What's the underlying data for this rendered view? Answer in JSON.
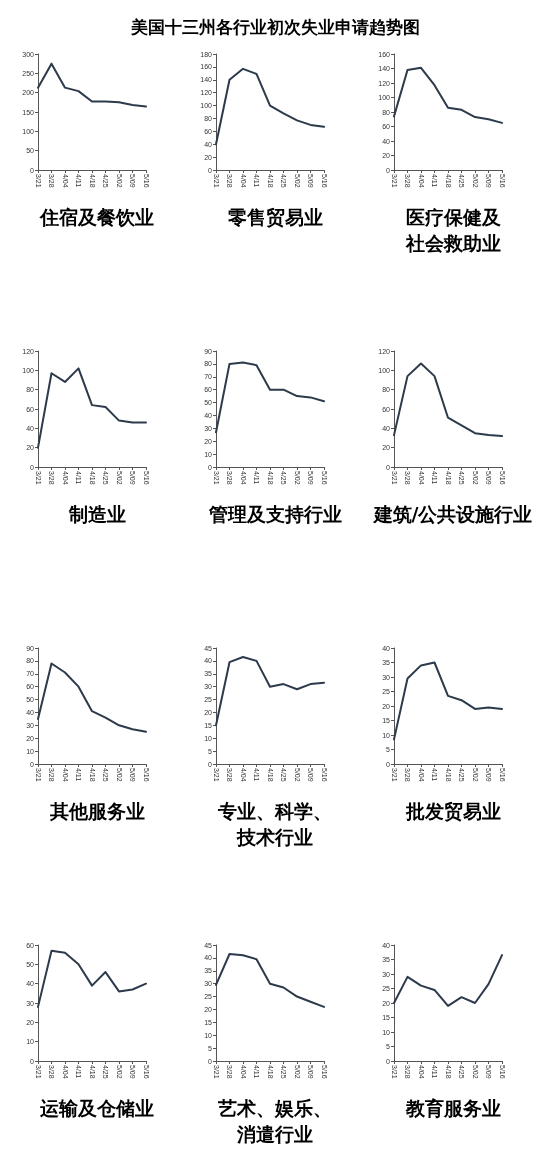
{
  "chart_data": [
    {
      "type": "other",
      "title": "美国十三州各行业初次失业申请趋势图"
    },
    {
      "type": "line",
      "title": "住宿及餐饮业",
      "categories": [
        "3/21",
        "3/28",
        "4/04",
        "4/11",
        "4/18",
        "4/25",
        "5/02",
        "5/09",
        "5/16"
      ],
      "values": [
        213,
        275,
        213,
        204,
        177,
        177,
        175,
        168,
        164
      ],
      "color": "#2c3a4b",
      "ylim": [
        0,
        300
      ],
      "yticks": [
        0,
        50,
        100,
        150,
        200,
        250,
        300
      ]
    },
    {
      "type": "line",
      "title": "零售贸易业",
      "categories": [
        "3/21",
        "3/28",
        "4/04",
        "4/11",
        "4/18",
        "4/25",
        "5/02",
        "5/09",
        "5/16"
      ],
      "values": [
        40,
        140,
        157,
        149,
        100,
        88,
        77,
        70,
        67
      ],
      "color": "#2c3a4b",
      "ylim": [
        0,
        180
      ],
      "yticks": [
        0,
        20,
        40,
        60,
        80,
        100,
        120,
        140,
        160,
        180
      ]
    },
    {
      "type": "line",
      "title": "医疗保健及社会救助业",
      "categories": [
        "3/21",
        "3/28",
        "4/04",
        "4/11",
        "4/18",
        "4/25",
        "5/02",
        "5/09",
        "5/16"
      ],
      "values": [
        74,
        138,
        141,
        117,
        86,
        83,
        73,
        70,
        65
      ],
      "color": "#2c3a4b",
      "ylim": [
        0,
        160
      ],
      "yticks": [
        0,
        20,
        40,
        60,
        80,
        100,
        120,
        140,
        160
      ]
    },
    {
      "type": "line",
      "title": "制造业",
      "categories": [
        "3/21",
        "3/28",
        "4/04",
        "4/11",
        "4/18",
        "4/25",
        "5/02",
        "5/09",
        "5/16"
      ],
      "values": [
        20,
        97,
        88,
        102,
        64,
        62,
        48,
        46,
        46
      ],
      "color": "#2c3a4b",
      "ylim": [
        0,
        120
      ],
      "yticks": [
        0,
        20,
        40,
        60,
        80,
        100,
        120
      ]
    },
    {
      "type": "line",
      "title": "管理及支持行业",
      "categories": [
        "3/21",
        "3/28",
        "4/04",
        "4/11",
        "4/18",
        "4/25",
        "5/02",
        "5/09",
        "5/16"
      ],
      "values": [
        27,
        80,
        81,
        79,
        60,
        60,
        55,
        54,
        51
      ],
      "color": "#2c3a4b",
      "ylim": [
        0,
        90
      ],
      "yticks": [
        0,
        10,
        20,
        30,
        40,
        50,
        60,
        70,
        80,
        90
      ]
    },
    {
      "type": "line",
      "title": "建筑/公共设施行业",
      "categories": [
        "3/21",
        "3/28",
        "4/04",
        "4/11",
        "4/18",
        "4/25",
        "5/02",
        "5/09",
        "5/16"
      ],
      "values": [
        33,
        94,
        107,
        94,
        51,
        43,
        35,
        33,
        32
      ],
      "color": "#2c3a4b",
      "ylim": [
        0,
        120
      ],
      "yticks": [
        0,
        20,
        40,
        60,
        80,
        100,
        120
      ]
    },
    {
      "type": "line",
      "title": "其他服务业",
      "categories": [
        "3/21",
        "3/28",
        "4/04",
        "4/11",
        "4/18",
        "4/25",
        "5/02",
        "5/09",
        "5/16"
      ],
      "values": [
        35,
        78,
        71,
        60,
        41,
        36,
        30,
        27,
        25
      ],
      "color": "#2c3a4b",
      "ylim": [
        0,
        90
      ],
      "yticks": [
        0,
        10,
        20,
        30,
        40,
        50,
        60,
        70,
        80,
        90
      ]
    },
    {
      "type": "line",
      "title": "专业、科学、技术行业",
      "categories": [
        "3/21",
        "3/28",
        "4/04",
        "4/11",
        "4/18",
        "4/25",
        "5/02",
        "5/09",
        "5/16"
      ],
      "values": [
        15,
        39.5,
        41.5,
        40,
        30,
        31,
        29,
        31,
        31.5
      ],
      "color": "#2c3a4b",
      "ylim": [
        0,
        45
      ],
      "yticks": [
        0,
        5,
        10,
        15,
        20,
        25,
        30,
        35,
        40,
        45
      ]
    },
    {
      "type": "line",
      "title": "批发贸易业",
      "categories": [
        "3/21",
        "3/28",
        "4/04",
        "4/11",
        "4/18",
        "4/25",
        "5/02",
        "5/09",
        "5/16"
      ],
      "values": [
        8.5,
        29.5,
        34,
        35,
        23.5,
        22,
        19,
        19.5,
        19
      ],
      "color": "#2c3a4b",
      "ylim": [
        0,
        40
      ],
      "yticks": [
        0,
        5,
        10,
        15,
        20,
        25,
        30,
        35,
        40
      ]
    },
    {
      "type": "line",
      "title": "运输及仓储业",
      "categories": [
        "3/21",
        "3/28",
        "4/04",
        "4/11",
        "4/18",
        "4/25",
        "5/02",
        "5/09",
        "5/16"
      ],
      "values": [
        28,
        57,
        56,
        50,
        39,
        46,
        36,
        37,
        40
      ],
      "color": "#2c3a4b",
      "ylim": [
        0,
        60
      ],
      "yticks": [
        0,
        10,
        20,
        30,
        40,
        50,
        60
      ]
    },
    {
      "type": "line",
      "title": "艺术、娱乐、消遣行业",
      "categories": [
        "3/21",
        "3/28",
        "4/04",
        "4/11",
        "4/18",
        "4/25",
        "5/02",
        "5/09",
        "5/16"
      ],
      "values": [
        29.5,
        41.5,
        41,
        39.5,
        30,
        28.5,
        25,
        23,
        21
      ],
      "color": "#2c3a4b",
      "ylim": [
        0,
        45
      ],
      "yticks": [
        0,
        5,
        10,
        15,
        20,
        25,
        30,
        35,
        40,
        45
      ]
    },
    {
      "type": "line",
      "title": "教育服务业",
      "categories": [
        "3/21",
        "3/28",
        "4/04",
        "4/11",
        "4/18",
        "4/25",
        "5/02",
        "5/09",
        "5/16"
      ],
      "values": [
        20,
        29,
        26,
        24.5,
        19,
        22,
        20,
        26.5,
        36.5
      ],
      "color": "#2c3a4b",
      "ylim": [
        0,
        40
      ],
      "yticks": [
        0,
        5,
        10,
        15,
        20,
        25,
        30,
        35,
        40
      ]
    }
  ]
}
